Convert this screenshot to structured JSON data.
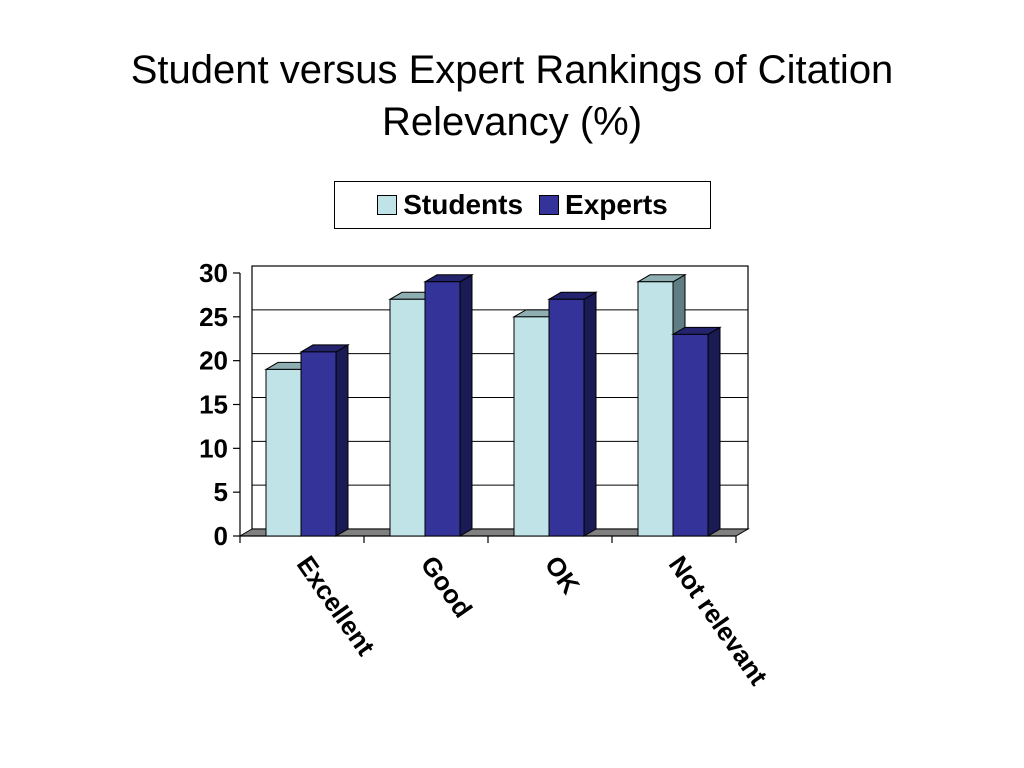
{
  "slide": {
    "title_line1": "Student versus Expert Rankings of Citation",
    "title_line2": "Relevancy (%)"
  },
  "chart_data": {
    "type": "bar",
    "title": "Student versus Expert Rankings of Citation Relevancy (%)",
    "categories": [
      "Excellent",
      "Good",
      "OK",
      "Not relevant"
    ],
    "series": [
      {
        "name": "Students",
        "values": [
          19,
          27,
          25,
          29
        ],
        "color": "#BFE3E6",
        "side_color": "#5F7E84",
        "top_color": "#8FAEB2"
      },
      {
        "name": "Experts",
        "values": [
          21,
          29,
          27,
          23
        ],
        "color": "#333399",
        "side_color": "#1A1A55",
        "top_color": "#24246E"
      }
    ],
    "ylim": [
      0,
      30
    ],
    "yticks": [
      0,
      5,
      10,
      15,
      20,
      25,
      30
    ],
    "grid": true,
    "legend_position": "top",
    "xlabel": "",
    "ylabel": ""
  }
}
